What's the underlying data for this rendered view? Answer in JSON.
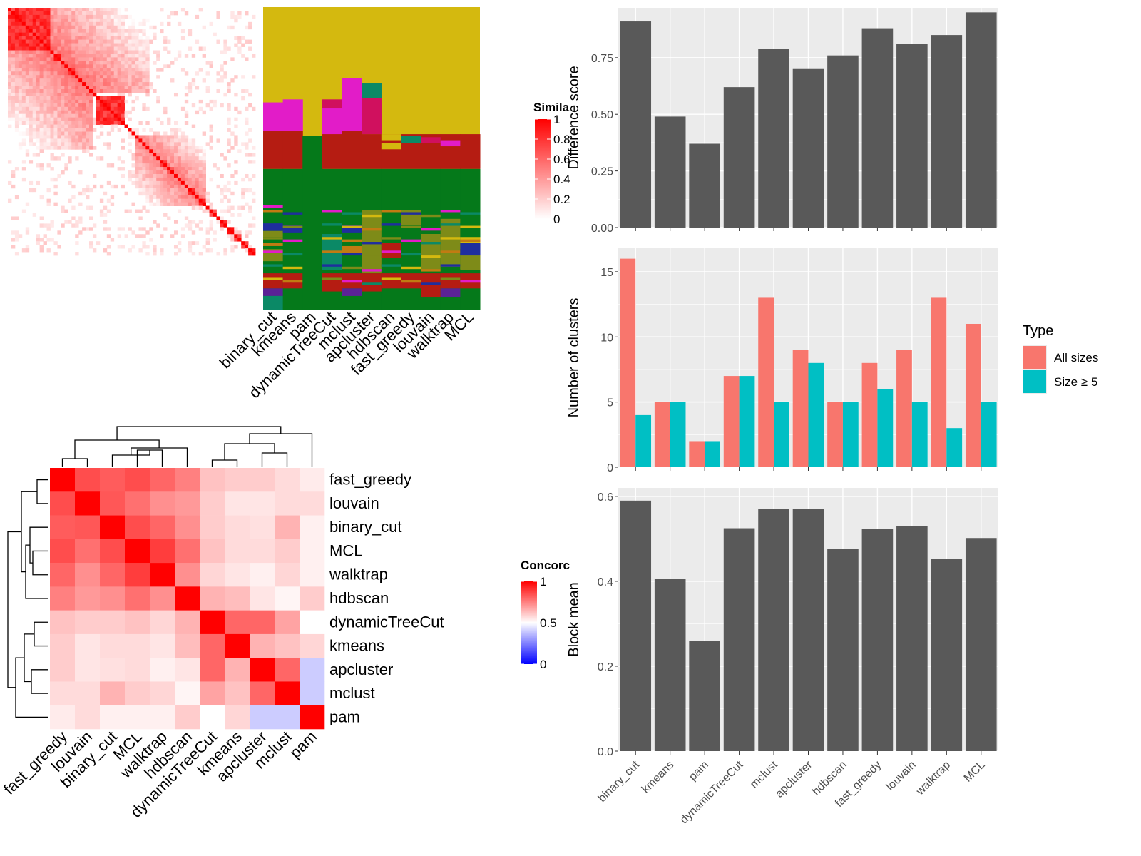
{
  "colors": {
    "panel_bg": "#EBEBEB",
    "grid": "#FFFFFF",
    "bar": "#595959",
    "all_sizes": "#F8766D",
    "size5": "#00BFC4",
    "heat_high": "#FF0000",
    "heat_mid": "#FFFFFF",
    "heat_low": "#0000FF",
    "k_olive": "#D4B90F",
    "k_magenta": "#E21CC8",
    "k_red": "#B51C12",
    "k_green": "#05791A",
    "k_teal": "#0B8966",
    "k_orange": "#C17B12",
    "k_blue": "#1F2E9E",
    "k_olive2": "#7E8B18",
    "k_purple": "#5B2296",
    "k_crimson": "#D0105E"
  },
  "similarity": {
    "legend_title": "Simila",
    "legend_ticks": [
      "1",
      "0.8",
      "0.6",
      "0.4",
      "0.2",
      "0"
    ],
    "methods": [
      "binary_cut",
      "kmeans",
      "pam",
      "dynamicTreeCut",
      "mclust",
      "apcluster",
      "hdbscan",
      "fast_greedy",
      "louvain",
      "walktrap",
      "MCL"
    ],
    "block_sizes": [
      12,
      1,
      2,
      1,
      1,
      2,
      1,
      1,
      1,
      1,
      1,
      1,
      8,
      1,
      1,
      1,
      1,
      1,
      1,
      1,
      1,
      1,
      1,
      2,
      2,
      1,
      1,
      1,
      1,
      2,
      1,
      2,
      1,
      2,
      1,
      2,
      2,
      2,
      2,
      2
    ]
  },
  "concordance": {
    "legend_title": "Concorc",
    "legend_ticks": [
      "1",
      "0.5",
      "0"
    ],
    "labels": [
      "fast_greedy",
      "louvain",
      "binary_cut",
      "MCL",
      "walktrap",
      "hdbscan",
      "dynamicTreeCut",
      "kmeans",
      "apcluster",
      "mclust",
      "pam"
    ],
    "matrix": [
      [
        1.0,
        0.85,
        0.82,
        0.85,
        0.8,
        0.75,
        0.62,
        0.6,
        0.6,
        0.57,
        0.54
      ],
      [
        0.85,
        1.0,
        0.83,
        0.78,
        0.72,
        0.7,
        0.6,
        0.55,
        0.55,
        0.57,
        0.57
      ],
      [
        0.82,
        0.83,
        1.0,
        0.85,
        0.8,
        0.72,
        0.6,
        0.57,
        0.56,
        0.65,
        0.53
      ],
      [
        0.85,
        0.78,
        0.85,
        1.0,
        0.88,
        0.78,
        0.62,
        0.57,
        0.57,
        0.6,
        0.53
      ],
      [
        0.8,
        0.72,
        0.8,
        0.88,
        1.0,
        0.72,
        0.58,
        0.55,
        0.53,
        0.58,
        0.53
      ],
      [
        0.75,
        0.7,
        0.72,
        0.78,
        0.72,
        1.0,
        0.65,
        0.63,
        0.55,
        0.52,
        0.6
      ],
      [
        0.62,
        0.6,
        0.6,
        0.62,
        0.58,
        0.65,
        1.0,
        0.8,
        0.8,
        0.68,
        0.5
      ],
      [
        0.6,
        0.55,
        0.57,
        0.57,
        0.55,
        0.63,
        0.8,
        1.0,
        0.65,
        0.62,
        0.58
      ],
      [
        0.6,
        0.55,
        0.56,
        0.57,
        0.53,
        0.55,
        0.8,
        0.65,
        1.0,
        0.8,
        0.4
      ],
      [
        0.57,
        0.57,
        0.65,
        0.6,
        0.58,
        0.52,
        0.68,
        0.62,
        0.8,
        1.0,
        0.4
      ],
      [
        0.54,
        0.57,
        0.53,
        0.53,
        0.53,
        0.6,
        0.5,
        0.58,
        0.4,
        0.4,
        1.0
      ]
    ]
  },
  "chart_data": [
    {
      "type": "heatmap",
      "description_label": "Similarity",
      "legend_title": "Simila",
      "range": [
        0,
        1
      ],
      "columns": [
        "binary_cut",
        "kmeans",
        "pam",
        "dynamicTreeCut",
        "mclust",
        "apcluster",
        "hdbscan",
        "fast_greedy",
        "louvain",
        "walktrap",
        "MCL"
      ]
    },
    {
      "type": "heatmap",
      "legend_title": "Concorc",
      "range": [
        0,
        1
      ],
      "rows": [
        "fast_greedy",
        "louvain",
        "binary_cut",
        "MCL",
        "walktrap",
        "hdbscan",
        "dynamicTreeCut",
        "kmeans",
        "apcluster",
        "mclust",
        "pam"
      ],
      "columns": [
        "fast_greedy",
        "louvain",
        "binary_cut",
        "MCL",
        "walktrap",
        "hdbscan",
        "dynamicTreeCut",
        "kmeans",
        "apcluster",
        "mclust",
        "pam"
      ]
    },
    {
      "type": "bar",
      "categories": [
        "binary_cut",
        "kmeans",
        "pam",
        "dynamicTreeCut",
        "mclust",
        "apcluster",
        "hdbscan",
        "fast_greedy",
        "louvain",
        "walktrap",
        "MCL"
      ],
      "values": [
        0.91,
        0.49,
        0.37,
        0.62,
        0.79,
        0.7,
        0.76,
        0.88,
        0.81,
        0.85,
        0.95
      ],
      "ylabel": "Difference score",
      "ylim": [
        0,
        0.97
      ],
      "yticks": [
        0,
        0.25,
        0.5,
        0.75
      ],
      "ytick_labels": [
        "0.00",
        "0.25",
        "0.50",
        "0.75"
      ],
      "grid": true
    },
    {
      "type": "bar",
      "categories": [
        "binary_cut",
        "kmeans",
        "pam",
        "dynamicTreeCut",
        "mclust",
        "apcluster",
        "hdbscan",
        "fast_greedy",
        "louvain",
        "walktrap",
        "MCL"
      ],
      "series": [
        {
          "name": "All sizes",
          "values": [
            16,
            5,
            2,
            7,
            13,
            9,
            5,
            8,
            9,
            13,
            11
          ]
        },
        {
          "name": "Size ≥ 5",
          "values": [
            4,
            5,
            2,
            7,
            5,
            8,
            5,
            6,
            5,
            3,
            5
          ]
        }
      ],
      "ylabel": "Number of clusters",
      "legend_title": "Type",
      "legend_position": "right",
      "ylim": [
        0,
        16.8
      ],
      "yticks": [
        0,
        5,
        10,
        15
      ],
      "ytick_labels": [
        "0",
        "5",
        "10",
        "15"
      ],
      "grid": true
    },
    {
      "type": "bar",
      "categories": [
        "binary_cut",
        "kmeans",
        "pam",
        "dynamicTreeCut",
        "mclust",
        "apcluster",
        "hdbscan",
        "fast_greedy",
        "louvain",
        "walktrap",
        "MCL"
      ],
      "values": [
        0.59,
        0.405,
        0.26,
        0.525,
        0.57,
        0.571,
        0.476,
        0.524,
        0.53,
        0.453,
        0.502
      ],
      "ylabel": "Block mean",
      "ylim": [
        0,
        0.62
      ],
      "yticks": [
        0,
        0.2,
        0.4,
        0.6
      ],
      "ytick_labels": [
        "0.0",
        "0.2",
        "0.4",
        "0.6"
      ],
      "grid": true
    }
  ]
}
